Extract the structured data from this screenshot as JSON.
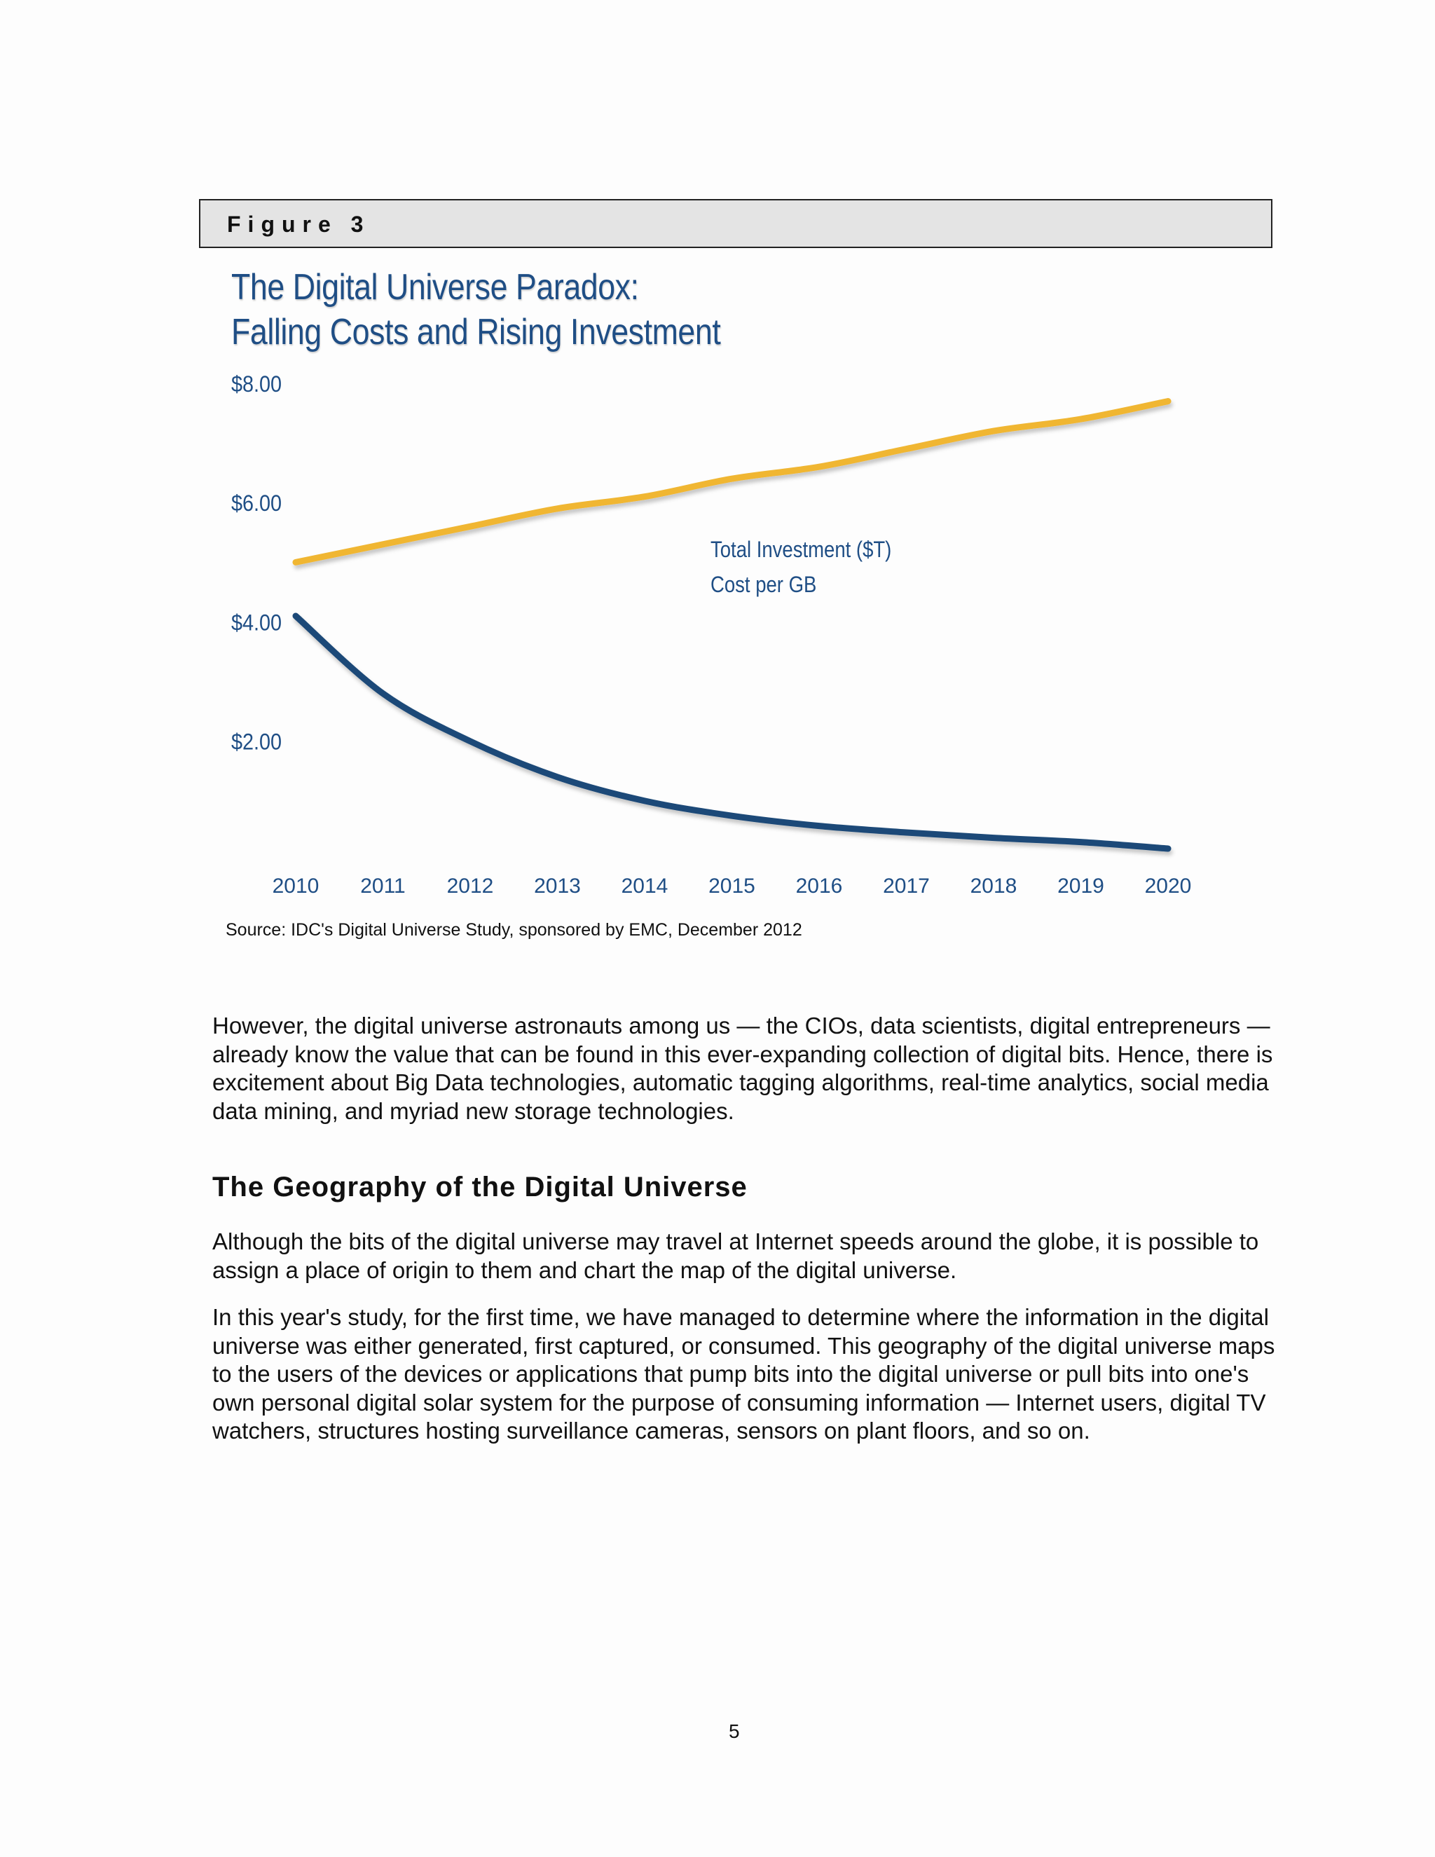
{
  "figure_label": "Figure 3",
  "chart_data": {
    "type": "line",
    "title": "The Digital Universe Paradox:",
    "subtitle": "Falling Costs and Rising Investment",
    "x": [
      2010,
      2011,
      2012,
      2013,
      2014,
      2015,
      2016,
      2017,
      2018,
      2019,
      2020
    ],
    "x_tick_labels": [
      "2010",
      "2011",
      "2012",
      "2013",
      "2014",
      "2015",
      "2016",
      "2017",
      "2018",
      "2019",
      "2020"
    ],
    "y_tick_labels": [
      "$8.00",
      "$6.00",
      "$4.00",
      "$2.00"
    ],
    "y_ticks": [
      8,
      6,
      4,
      2
    ],
    "ylim": [
      0,
      8
    ],
    "grid": true,
    "legend_position": "center",
    "series": [
      {
        "name": "Total Investment ($T)",
        "color": "#f0b631",
        "values": [
          5.0,
          5.3,
          5.6,
          5.9,
          6.1,
          6.4,
          6.6,
          6.9,
          7.2,
          7.4,
          7.7
        ]
      },
      {
        "name": "Cost per GB",
        "color": "#1b4a78",
        "values": [
          4.1,
          2.8,
          2.0,
          1.4,
          1.0,
          0.75,
          0.58,
          0.47,
          0.38,
          0.31,
          0.2
        ]
      }
    ]
  },
  "source": "Source: IDC's Digital Universe Study, sponsored by EMC, December 2012",
  "paragraph1": "However, the digital universe astronauts among us — the CIOs, data scientists, digital entrepreneurs — already know the value that can be found in this ever-expanding collection of digital bits. Hence, there is excitement about Big Data technologies, automatic tagging algorithms, real-time analytics, social media data mining, and myriad new storage technologies.",
  "heading": "The Geography of the Digital Universe",
  "paragraph2": "Although the bits of the digital universe may travel at Internet speeds around the globe, it is possible to assign a place of origin to them and chart the map of the digital universe.",
  "paragraph3": "In this year's study, for the first time, we have managed to determine where the information in the digital universe was either generated, first captured, or consumed. This geography of the digital universe maps to the users of the devices or applications that pump bits into the digital universe or pull bits into one's own personal digital solar system for the purpose of consuming information — Internet users, digital TV watchers, structures hosting surveillance cameras, sensors on plant floors, and so on.",
  "page_number": "5"
}
